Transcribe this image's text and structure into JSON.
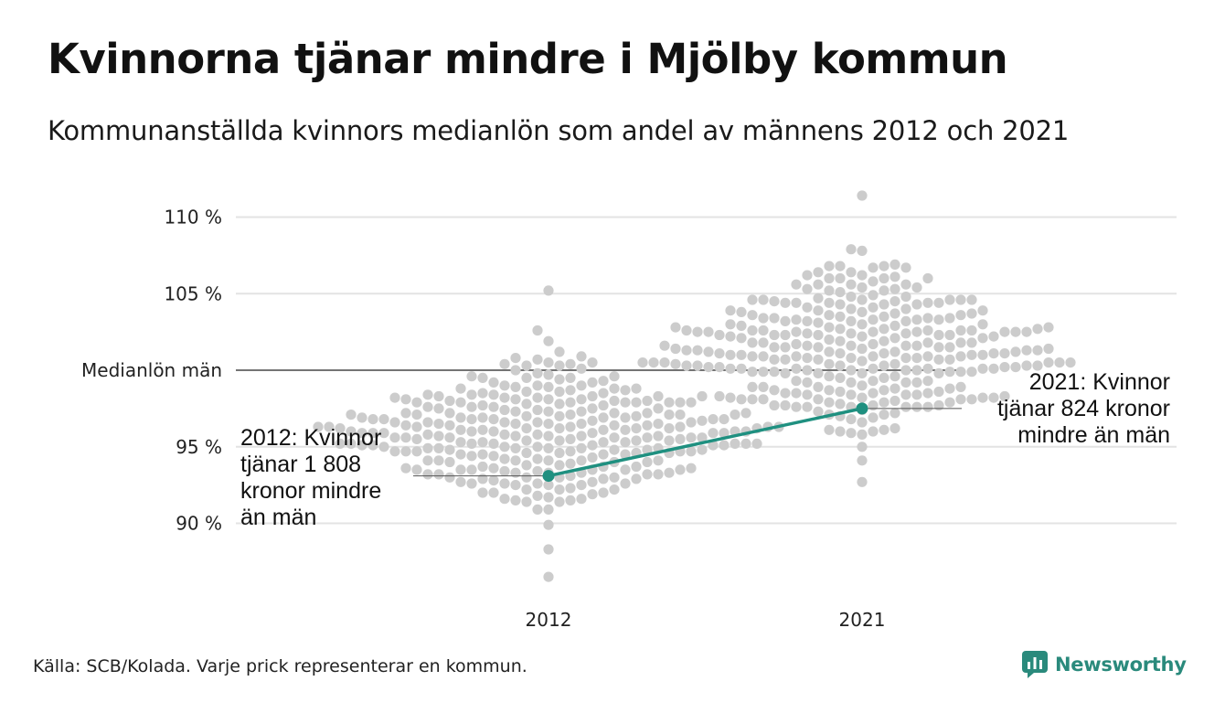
{
  "header": {
    "title": "Kvinnorna tjänar mindre i Mjölby kommun",
    "subtitle": "Kommunanställda kvinnors medianlön som andel av männens 2012 och 2021"
  },
  "footer": {
    "source": "Källa: SCB/Kolada. Varje prick representerar en kommun.",
    "brand": "Newsworthy"
  },
  "colors": {
    "dots": "#cccccc",
    "highlight": "#1f9080",
    "gridline": "#e3e3e3",
    "reference_line": "#222222"
  },
  "chart_data": {
    "type": "scatter",
    "subtype": "beeswarm",
    "categories": [
      "2012",
      "2021"
    ],
    "y_ticks": [
      {
        "value": 90,
        "label": "90 %"
      },
      {
        "value": 95,
        "label": "95 %"
      },
      {
        "value": 105,
        "label": "105 %"
      },
      {
        "value": 110,
        "label": "110 %"
      }
    ],
    "ylim": [
      87,
      112
    ],
    "grid": true,
    "reference_line": {
      "value": 100,
      "label": "Medianlön män"
    },
    "highlight": {
      "series": [
        {
          "category": "2012",
          "value": 93.1,
          "label": [
            "2012: Kvinnor",
            "tjänar 1 808",
            "kronor mindre",
            "än män"
          ]
        },
        {
          "category": "2021",
          "value": 97.5,
          "label": [
            "2021: Kvinnor",
            "tjänar 824 kronor",
            "mindre än män"
          ]
        }
      ]
    },
    "distribution": [
      {
        "category": "2012",
        "n": 290,
        "median": 95.8,
        "spread": 2.3,
        "min": 86.5,
        "max": 105.2
      },
      {
        "category": "2021",
        "n": 290,
        "median": 101.4,
        "spread": 2.7,
        "min": 92.7,
        "max": 111.4
      }
    ]
  }
}
